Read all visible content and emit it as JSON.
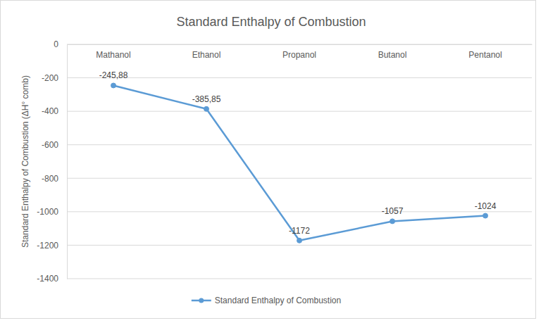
{
  "chart_data": {
    "type": "line",
    "title": "Standard Enthalpy of Combustion",
    "y_label": "Standard Enthalpy of Combustion (ΔH° comb)",
    "categories": [
      "Mathanol",
      "Ethanol",
      "Propanol",
      "Butanol",
      "Pentanol"
    ],
    "series": [
      {
        "name": "Standard Enthalpy of Combustion",
        "color": "#5b9bd5",
        "marker": "circle",
        "values": [
          -245.88,
          -385.85,
          -1172,
          -1057,
          -1024
        ],
        "value_labels": [
          "-245,88",
          "-385,85",
          "-1172",
          "-1057",
          "-1024"
        ]
      }
    ],
    "ylim": [
      -1400,
      0
    ],
    "yticks": [
      0,
      -200,
      -400,
      -600,
      -800,
      -1000,
      -1200,
      -1400
    ],
    "grid": true,
    "legend": "bottom",
    "data_labels": true
  }
}
